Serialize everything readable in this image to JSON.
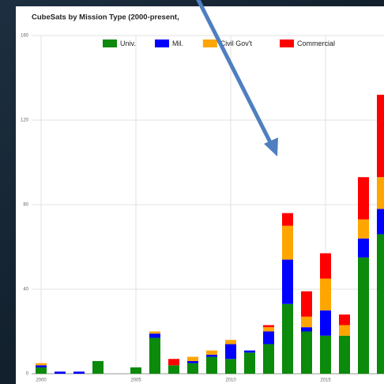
{
  "chart_data": {
    "type": "stacked_bar",
    "title": "CubeSats by Mission Type (2000-present,",
    "x": [
      2000,
      2001,
      2002,
      2003,
      2004,
      2005,
      2006,
      2007,
      2008,
      2009,
      2010,
      2011,
      2012,
      2013,
      2014,
      2015,
      2016,
      2017,
      2018
    ],
    "series": [
      {
        "name": "Univ.",
        "color": "#0b8a0b",
        "values": [
          3,
          0,
          0,
          6,
          0,
          3,
          17,
          4,
          5,
          8,
          7,
          10,
          14,
          33,
          20,
          18,
          18,
          55,
          66
        ]
      },
      {
        "name": "Mil.",
        "color": "#0000ff",
        "values": [
          1,
          1,
          1,
          0,
          0,
          0,
          2,
          0,
          1,
          1,
          7,
          1,
          6,
          21,
          2,
          12,
          0,
          9,
          12
        ]
      },
      {
        "name": "Civil Gov't",
        "color": "#ffa500",
        "values": [
          1,
          0,
          0,
          0,
          0,
          0,
          1,
          0,
          2,
          2,
          2,
          0,
          2,
          16,
          5,
          15,
          5,
          9,
          15
        ]
      },
      {
        "name": "Commercial",
        "color": "#ff0000",
        "values": [
          0,
          0,
          0,
          0,
          0,
          0,
          0,
          3,
          0,
          0,
          0,
          0,
          1,
          6,
          12,
          12,
          5,
          20,
          39
        ]
      }
    ],
    "xlim": [
      1999.5,
      2019.5
    ],
    "xticks": [
      2000,
      2005,
      2010,
      2015
    ],
    "ylim": [
      0,
      160
    ],
    "yticks": [
      0,
      40,
      80,
      120,
      160
    ],
    "grid": true
  }
}
